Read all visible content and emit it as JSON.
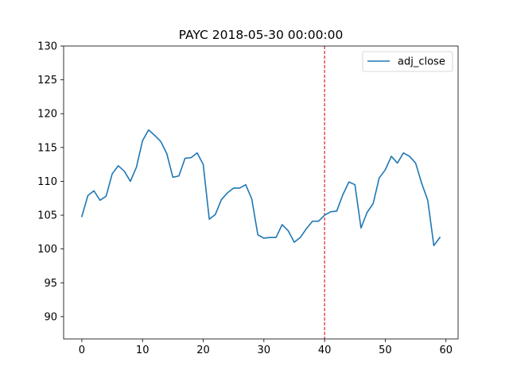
{
  "chart_data": {
    "type": "line",
    "title": "PAYC 2018-05-30 00:00:00",
    "xlabel": "",
    "ylabel": "",
    "xlim": [
      -3,
      62
    ],
    "ylim": [
      86.7,
      130
    ],
    "x_ticks": [
      0,
      10,
      20,
      30,
      40,
      50,
      60
    ],
    "y_ticks": [
      90,
      95,
      100,
      105,
      110,
      115,
      120,
      125,
      130
    ],
    "grid": false,
    "legend_position": "top-right",
    "vline": {
      "x": 40,
      "color": "#d62728",
      "style": "dashed"
    },
    "series": [
      {
        "name": "adj_close",
        "color": "#1f77b4",
        "x": [
          0,
          1,
          2,
          3,
          4,
          5,
          6,
          7,
          8,
          9,
          10,
          11,
          12,
          13,
          14,
          15,
          16,
          17,
          18,
          19,
          20,
          21,
          22,
          23,
          24,
          25,
          26,
          27,
          28,
          29,
          30,
          31,
          32,
          33,
          34,
          35,
          36,
          37,
          38,
          39,
          40,
          41,
          42,
          43,
          44,
          45,
          46,
          47,
          48,
          49,
          50,
          51,
          52,
          53,
          54,
          55,
          56,
          57,
          58,
          59
        ],
        "values": [
          104.8,
          107.9,
          108.6,
          107.2,
          107.8,
          111.1,
          112.3,
          111.5,
          110.0,
          112.1,
          116.0,
          117.6,
          116.8,
          115.9,
          114.1,
          110.6,
          110.8,
          113.4,
          113.5,
          114.2,
          112.5,
          104.4,
          105.1,
          107.3,
          108.3,
          109.0,
          109.0,
          109.5,
          107.4,
          102.1,
          101.6,
          101.7,
          101.7,
          103.6,
          102.7,
          101.0,
          101.7,
          103.0,
          104.1,
          104.1,
          105.0,
          105.5,
          105.6,
          108.0,
          109.9,
          109.5,
          103.1,
          105.4,
          106.7,
          110.5,
          111.7,
          113.7,
          112.7,
          114.2,
          113.7,
          112.7,
          109.7,
          107.2,
          100.5,
          101.7
        ]
      }
    ]
  }
}
